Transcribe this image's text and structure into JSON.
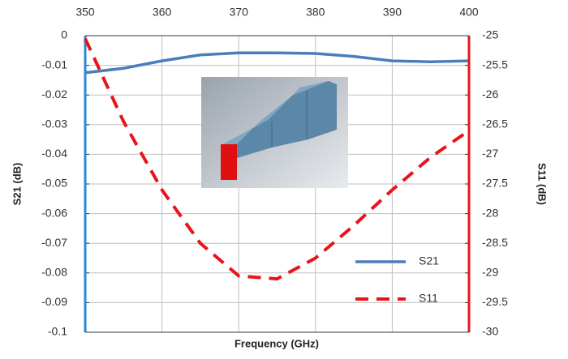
{
  "chart_data": {
    "type": "line",
    "x_label": "Frequency (GHz)",
    "y_label": "S21 (dB)",
    "y2_label": "S11 (dB)",
    "x": [
      350,
      355,
      360,
      365,
      370,
      375,
      380,
      385,
      390,
      395,
      400
    ],
    "xlim": [
      350,
      400
    ],
    "xticks": [
      350,
      360,
      370,
      380,
      390,
      400
    ],
    "ylim": [
      -0.1,
      0
    ],
    "yticks": [
      0,
      -0.01,
      -0.02,
      -0.03,
      -0.04,
      -0.05,
      -0.06,
      -0.07,
      -0.08,
      -0.09,
      -0.1
    ],
    "y2lim": [
      -30,
      -25
    ],
    "y2ticks": [
      -25,
      -25.5,
      -26,
      -26.5,
      -27,
      -27.5,
      -28,
      -28.5,
      -29,
      -29.5,
      -30
    ],
    "grid": true,
    "legend": "lower right",
    "series": [
      {
        "name": "S21",
        "color": "#4a7ebb",
        "dash": false,
        "values": [
          -0.0125,
          -0.011,
          -0.0085,
          -0.0065,
          -0.0058,
          -0.0058,
          -0.006,
          -0.007,
          -0.0085,
          -0.0088,
          -0.0085
        ]
      },
      {
        "name": "S11",
        "color": "#e8141c",
        "dash": true,
        "axis": "y2",
        "values": [
          -25.05,
          -26.45,
          -27.6,
          -28.5,
          -29.05,
          -29.1,
          -28.75,
          -28.2,
          -27.6,
          -27.05,
          -26.6
        ]
      }
    ]
  }
}
